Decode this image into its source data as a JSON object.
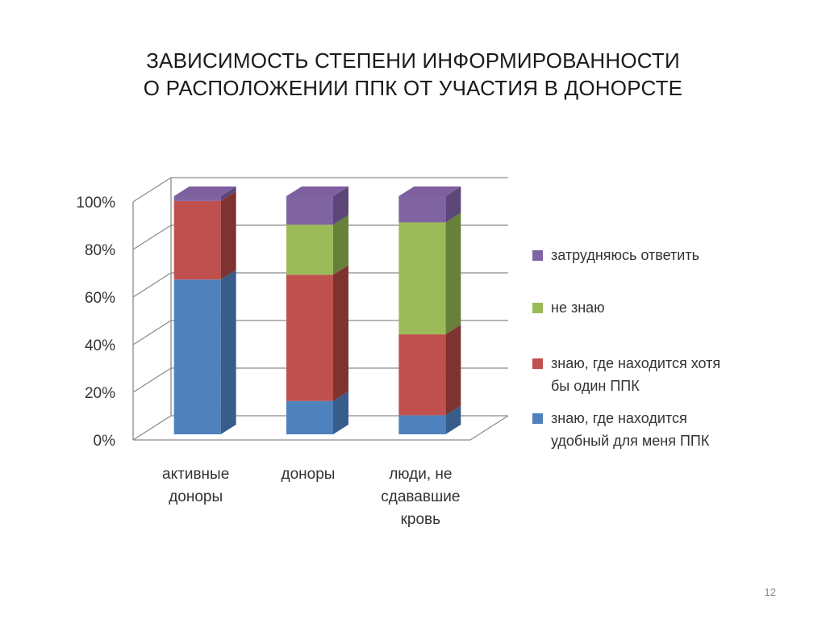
{
  "slide": {
    "title_line1": "ЗАВИСИМОСТЬ СТЕПЕНИ ИНФОРМИРОВАННОСТИ",
    "title_line2": "О РАСПОЛОЖЕНИИ ППК ОТ УЧАСТИЯ В ДОНОРСТЕ",
    "page_number": "12"
  },
  "chart_data": {
    "type": "bar",
    "stacked": "percent",
    "three_d": true,
    "categories": [
      "активные доноры",
      "доноры",
      "люди, не сдававшие кровь"
    ],
    "category_lines": [
      [
        "активные",
        "доноры"
      ],
      [
        "доноры"
      ],
      [
        "люди, не",
        "сдававшие",
        "кровь"
      ]
    ],
    "series": [
      {
        "name": "знаю, где находится удобный для меня ППК",
        "name_lines": [
          "знаю, где находится",
          "удобный для меня ППК"
        ],
        "values": [
          65,
          14,
          8
        ],
        "color": "#4F81BD",
        "side_color": "#385D8A",
        "top_color": "#6A94C9"
      },
      {
        "name": "знаю, где находится хотя бы один ППК",
        "name_lines": [
          "знаю, где находится хотя",
          "бы один ППК"
        ],
        "values": [
          33,
          53,
          34
        ],
        "color": "#C0504D",
        "side_color": "#7F3331",
        "top_color": "#CE6F6C"
      },
      {
        "name": "не знаю",
        "name_lines": [
          "не знаю"
        ],
        "values": [
          0,
          21,
          47
        ],
        "color": "#9BBB59",
        "side_color": "#67803A",
        "top_color": "#ADC876"
      },
      {
        "name": "затрудняюсь ответить",
        "name_lines": [
          "затрудняюсь ответить"
        ],
        "values": [
          2,
          12,
          11
        ],
        "color": "#8064A2",
        "side_color": "#5C4778",
        "top_color": "#7E5FA0"
      }
    ],
    "y_ticks": [
      "0%",
      "20%",
      "40%",
      "60%",
      "80%",
      "100%"
    ],
    "ylim": [
      0,
      100
    ],
    "grid": true,
    "legend_position": "right",
    "legend_order": [
      "затрудняюсь ответить",
      "не знаю",
      "знаю, где находится хотя бы один ППК",
      "знаю, где находится удобный для меня ППК"
    ]
  }
}
